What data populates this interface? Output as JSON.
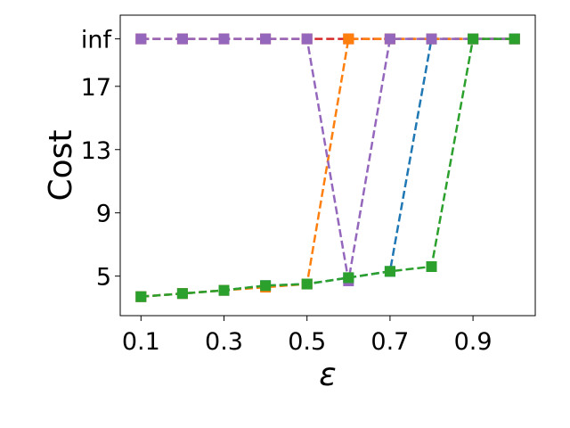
{
  "chart_data": {
    "type": "line",
    "xlabel": "ε",
    "ylabel": "Cost",
    "x_ticks": [
      "0.1",
      "0.3",
      "0.5",
      "0.7",
      "0.9"
    ],
    "y_ticks": [
      "5",
      "9",
      "13",
      "17",
      "inf"
    ],
    "xlim": [
      0.05,
      1.05
    ],
    "ylim": [
      2.5,
      21.5
    ],
    "inf_value": 20,
    "grid": false,
    "legend": false,
    "series": [
      {
        "color": "#d62728",
        "x": [
          0.1,
          0.2,
          0.3,
          0.4,
          0.5,
          0.6,
          0.7,
          0.8,
          0.9,
          1.0
        ],
        "y": [
          20,
          20,
          20,
          20,
          20,
          20,
          20,
          20,
          20,
          20
        ]
      },
      {
        "color": "#1f77b4",
        "x": [
          0.1,
          0.2,
          0.3,
          0.4,
          0.5,
          0.6,
          0.7,
          0.8,
          0.9,
          1.0
        ],
        "y": [
          3.7,
          3.9,
          4.1,
          4.4,
          4.5,
          4.9,
          5.3,
          20,
          20,
          20
        ]
      },
      {
        "color": "#ff7f0e",
        "x": [
          0.1,
          0.2,
          0.3,
          0.4,
          0.5,
          0.6,
          0.7,
          0.8,
          0.9,
          1.0
        ],
        "y": [
          3.7,
          3.9,
          4.1,
          4.3,
          4.5,
          20,
          20,
          20,
          20,
          20
        ]
      },
      {
        "color": "#9467bd",
        "x": [
          0.1,
          0.2,
          0.3,
          0.4,
          0.5,
          0.6,
          0.7,
          0.8,
          0.9,
          1.0
        ],
        "y": [
          20,
          20,
          20,
          20,
          20,
          4.7,
          20,
          20,
          20,
          20
        ]
      },
      {
        "color": "#2ca02c",
        "x": [
          0.1,
          0.2,
          0.3,
          0.4,
          0.5,
          0.6,
          0.7,
          0.8,
          0.9,
          1.0
        ],
        "y": [
          3.7,
          3.9,
          4.1,
          4.4,
          4.5,
          4.9,
          5.3,
          5.6,
          20,
          20
        ]
      }
    ]
  }
}
